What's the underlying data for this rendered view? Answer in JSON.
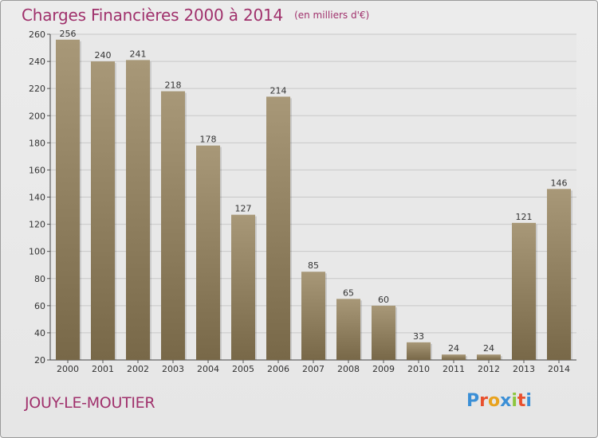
{
  "chart_data": {
    "type": "bar",
    "title": "Charges Financières 2000 à 2014",
    "subtitle": "(en milliers d'€)",
    "categories": [
      "2000",
      "2001",
      "2002",
      "2003",
      "2004",
      "2005",
      "2006",
      "2007",
      "2008",
      "2009",
      "2010",
      "2011",
      "2012",
      "2013",
      "2014"
    ],
    "values": [
      256,
      240,
      241,
      218,
      178,
      127,
      214,
      85,
      65,
      60,
      33,
      24,
      24,
      121,
      146
    ],
    "ylim": [
      20,
      260
    ],
    "yticks": [
      20,
      40,
      60,
      80,
      100,
      120,
      140,
      160,
      180,
      200,
      220,
      240,
      260
    ],
    "grid": true,
    "bar_color_top": "#a89878",
    "bar_color_bottom": "#786848"
  },
  "footer": {
    "commune": "JOUY-LE-MOUTIER",
    "logo_text": "Proxiti",
    "logo_colors": [
      "#3b8fd6",
      "#e8502e",
      "#e8a21e",
      "#3b8fd6",
      "#8cc63e",
      "#e8502e",
      "#3b8fd6"
    ]
  },
  "colors": {
    "title": "#a0316c",
    "grid": "#c8c8c8"
  }
}
